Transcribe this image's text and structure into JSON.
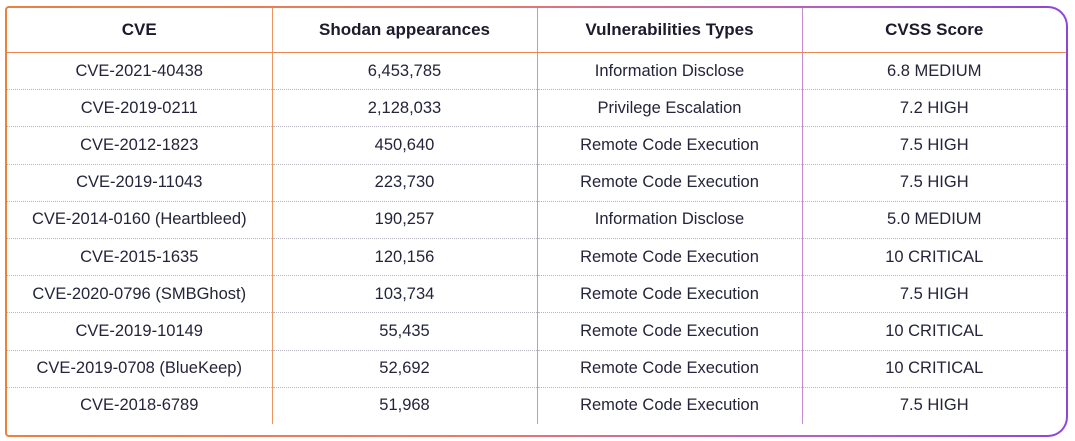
{
  "table": {
    "headers": [
      "CVE",
      "Shodan appearances",
      "Vulnerabilities Types",
      "CVSS Score"
    ],
    "rows": [
      [
        "CVE-2021-40438",
        "6,453,785",
        "Information Disclose",
        "6.8 MEDIUM"
      ],
      [
        "CVE-2019-0211",
        "2,128,033",
        "Privilege Escalation",
        "7.2 HIGH"
      ],
      [
        "CVE-2012-1823",
        "450,640",
        "Remote Code Execution",
        "7.5 HIGH"
      ],
      [
        "CVE-2019-11043",
        "223,730",
        "Remote Code Execution",
        "7.5 HIGH"
      ],
      [
        "CVE-2014-0160 (Heartbleed)",
        "190,257",
        "Information Disclose",
        "5.0 MEDIUM"
      ],
      [
        "CVE-2015-1635",
        "120,156",
        "Remote Code Execution",
        "10 CRITICAL"
      ],
      [
        "CVE-2020-0796 (SMBGhost)",
        "103,734",
        "Remote Code Execution",
        "7.5 HIGH"
      ],
      [
        "CVE-2019-10149",
        "55,435",
        "Remote Code Execution",
        "10 CRITICAL"
      ],
      [
        "CVE-2019-0708 (BlueKeep)",
        "52,692",
        "Remote Code Execution",
        "10 CRITICAL"
      ],
      [
        "CVE-2018-6789",
        "51,968",
        "Remote Code Execution",
        "7.5 HIGH"
      ]
    ]
  },
  "colors": {
    "border_start": "#ee7f3d",
    "border_end": "#8d46d8",
    "column_divider": "#ef9762",
    "row_divider": "#b9b4be",
    "text": "#24243a"
  }
}
